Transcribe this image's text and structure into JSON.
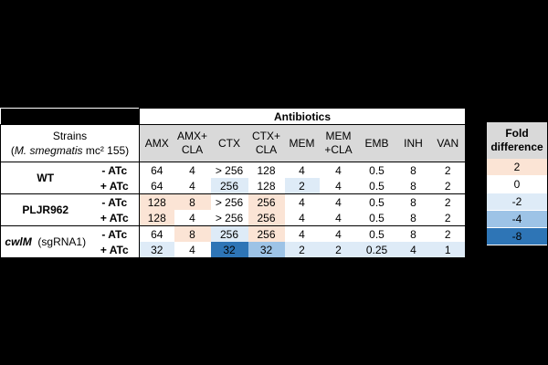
{
  "header": {
    "strains_line1": "Strains",
    "strains_species": "M. smegmatis",
    "strains_rest": " mc² 155)",
    "antibiotics": "Antibiotics"
  },
  "columns": [
    {
      "line1": "AMX",
      "line2": ""
    },
    {
      "line1": "AMX+",
      "line2": "CLA"
    },
    {
      "line1": "CTX",
      "line2": ""
    },
    {
      "line1": "CTX+",
      "line2": "CLA"
    },
    {
      "line1": "MEM",
      "line2": ""
    },
    {
      "line1": "MEM",
      "line2": "+CLA"
    },
    {
      "line1": "EMB",
      "line2": ""
    },
    {
      "line1": "INH",
      "line2": ""
    },
    {
      "line1": "VAN",
      "line2": ""
    }
  ],
  "strains": [
    {
      "name": "WT",
      "italic": "",
      "suffix": "",
      "rows": [
        {
          "atc": "- ATc",
          "values": [
            "64",
            "4",
            "> 256",
            "128",
            "4",
            "4",
            "0.5",
            "8",
            "2"
          ],
          "fold": [
            0,
            0,
            0,
            0,
            0,
            0,
            0,
            0,
            0
          ]
        },
        {
          "atc": "+ ATc",
          "values": [
            "64",
            "4",
            "256",
            "128",
            "2",
            "4",
            "0.5",
            "8",
            "2"
          ],
          "fold": [
            0,
            0,
            -2,
            0,
            -2,
            0,
            0,
            0,
            0
          ]
        }
      ]
    },
    {
      "name": "PLJR962",
      "italic": "",
      "suffix": "",
      "rows": [
        {
          "atc": "- ATc",
          "values": [
            "128",
            "8",
            "> 256",
            "256",
            "4",
            "4",
            "0.5",
            "8",
            "2"
          ],
          "fold": [
            2,
            2,
            0,
            2,
            0,
            0,
            0,
            0,
            0
          ]
        },
        {
          "atc": "+ ATc",
          "values": [
            "128",
            "4",
            "> 256",
            "256",
            "4",
            "4",
            "0.5",
            "8",
            "2"
          ],
          "fold": [
            2,
            0,
            0,
            2,
            0,
            0,
            0,
            0,
            0
          ]
        }
      ]
    },
    {
      "name": "",
      "italic": "cwlM",
      "suffix": "(sgRNA1)",
      "rows": [
        {
          "atc": "- ATc",
          "values": [
            "64",
            "8",
            "256",
            "256",
            "4",
            "4",
            "0.5",
            "8",
            "2"
          ],
          "fold": [
            0,
            2,
            -2,
            2,
            0,
            0,
            0,
            0,
            0
          ]
        },
        {
          "atc": "+ ATc",
          "values": [
            "32",
            "4",
            "32",
            "32",
            "2",
            "2",
            "0.25",
            "4",
            "1"
          ],
          "fold": [
            -2,
            0,
            -8,
            -4,
            -2,
            -2,
            -2,
            -2,
            -2
          ]
        }
      ]
    }
  ],
  "legend": {
    "title_line1": "Fold",
    "title_line2": "difference",
    "items": [
      {
        "label": "2",
        "color": "#fbe4d5"
      },
      {
        "label": "0",
        "color": "#ffffff"
      },
      {
        "label": "-2",
        "color": "#deebf7"
      },
      {
        "label": "-4",
        "color": "#9dc3e6"
      },
      {
        "label": "-8",
        "color": "#2e75b6"
      }
    ]
  },
  "colors": {
    "fold_2": "#fbe4d5",
    "fold_0": "#ffffff",
    "fold_-2": "#deebf7",
    "fold_-4": "#9dc3e6",
    "fold_-8": "#2e75b6",
    "header_gray": "#d9d9d9",
    "background": "#000000"
  }
}
